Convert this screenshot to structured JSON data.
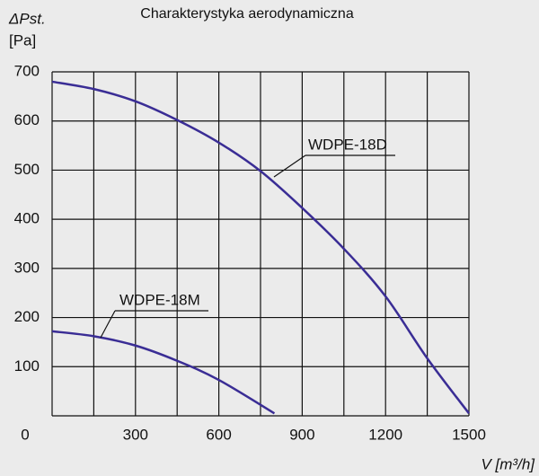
{
  "chart_data": {
    "type": "line",
    "title": "Charakterystyka aerodynamiczna",
    "ylabel": "ΔPst.",
    "yunit": "[Pa]",
    "xlabel": "V [m³/h]",
    "xlim": [
      0,
      1500
    ],
    "ylim": [
      0,
      700
    ],
    "xticks": [
      0,
      300,
      600,
      900,
      1200,
      1500
    ],
    "yticks": [
      100,
      200,
      300,
      400,
      500,
      600,
      700
    ],
    "x_grid": [
      150,
      300,
      450,
      600,
      750,
      900,
      1050,
      1200,
      1350,
      1500
    ],
    "grid": true,
    "series": [
      {
        "name": "WDPE-18D",
        "color": "#3a2d95",
        "x": [
          0,
          150,
          300,
          450,
          600,
          750,
          900,
          1050,
          1200,
          1350,
          1500
        ],
        "values": [
          680,
          665,
          640,
          602,
          556,
          498,
          423,
          340,
          243,
          117,
          5
        ]
      },
      {
        "name": "WDPE-18M",
        "color": "#3a2d95",
        "x": [
          0,
          150,
          300,
          450,
          600,
          800
        ],
        "values": [
          172,
          162,
          143,
          112,
          73,
          5
        ]
      }
    ]
  }
}
